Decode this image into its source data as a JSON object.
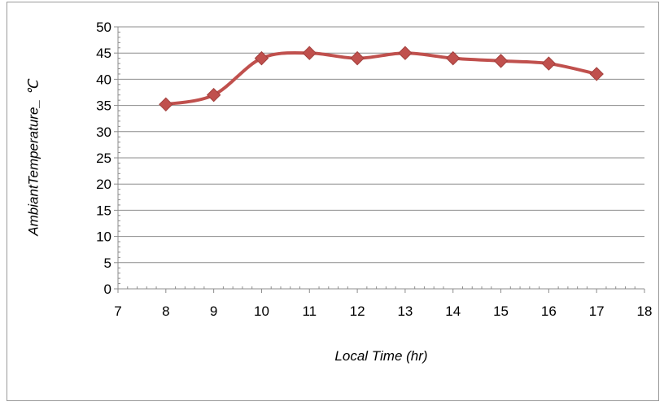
{
  "chart_data": {
    "type": "line",
    "xlabel": "Local Time (hr)",
    "ylabel": "AmbiantTemperature_ ℃",
    "xlim": [
      7,
      18
    ],
    "ylim": [
      0,
      50
    ],
    "x_ticks": [
      7,
      8,
      9,
      10,
      11,
      12,
      13,
      14,
      15,
      16,
      17,
      18
    ],
    "y_ticks": [
      0,
      5,
      10,
      15,
      20,
      25,
      30,
      35,
      40,
      45,
      50
    ],
    "grid": "horizontal",
    "legend": "none",
    "series": [
      {
        "x": [
          8,
          9,
          10,
          11,
          12,
          13,
          14,
          15,
          16,
          17
        ],
        "y": [
          35.2,
          37,
          44,
          45,
          44,
          45,
          44,
          43.5,
          43,
          41
        ],
        "color": "#C0504D",
        "marker": "diamond",
        "smooth": true
      }
    ]
  }
}
